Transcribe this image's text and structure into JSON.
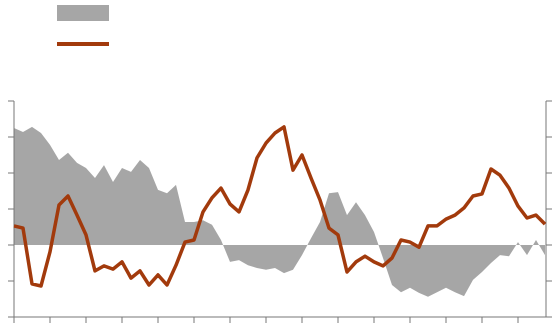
{
  "chart_data": {
    "type": "line",
    "series": [
      {
        "style": "area",
        "color": "#a6a6a6",
        "values": [
          3.25,
          3.14,
          3.28,
          3.11,
          2.78,
          2.36,
          2.56,
          2.28,
          2.14,
          1.86,
          2.22,
          1.75,
          2.14,
          2.03,
          2.36,
          2.14,
          1.53,
          1.44,
          1.67,
          0.64,
          0.64,
          0.69,
          0.56,
          0.14,
          -0.47,
          -0.42,
          -0.56,
          -0.64,
          -0.69,
          -0.64,
          -0.78,
          -0.69,
          -0.28,
          0.19,
          0.64,
          1.44,
          1.47,
          0.83,
          1.19,
          0.83,
          0.36,
          -0.36,
          -1.11,
          -1.31,
          -1.19,
          -1.33,
          -1.44,
          -1.31,
          -1.19,
          -1.31,
          -1.42,
          -0.97,
          -0.75,
          -0.5,
          -0.28,
          -0.31,
          0.08,
          -0.28,
          0.14,
          -0.28
        ]
      },
      {
        "style": "line",
        "color": "#a23a0c",
        "values": [
          0.53,
          0.47,
          -1.08,
          -1.14,
          -0.19,
          1.11,
          1.36,
          0.83,
          0.28,
          -0.72,
          -0.58,
          -0.67,
          -0.47,
          -0.92,
          -0.72,
          -1.11,
          -0.83,
          -1.11,
          -0.56,
          0.08,
          0.14,
          0.92,
          1.31,
          1.58,
          1.14,
          0.92,
          1.53,
          2.42,
          2.83,
          3.11,
          3.28,
          2.08,
          2.5,
          1.86,
          1.25,
          0.47,
          0.28,
          -0.75,
          -0.47,
          -0.31,
          -0.47,
          -0.58,
          -0.36,
          0.14,
          0.08,
          -0.06,
          0.53,
          0.53,
          0.72,
          0.83,
          1.03,
          1.36,
          1.42,
          2.11,
          1.94,
          1.58,
          1.08,
          0.75,
          0.83,
          0.58
        ]
      }
    ],
    "xlim": [
      0,
      59
    ],
    "xticks": [
      0,
      4,
      8,
      12,
      16,
      20,
      24,
      28,
      32,
      36,
      40,
      44,
      48,
      52,
      56
    ],
    "ylim": [
      -2,
      4
    ],
    "yticks": [
      -2,
      -1,
      0,
      1,
      2,
      3,
      4
    ]
  }
}
